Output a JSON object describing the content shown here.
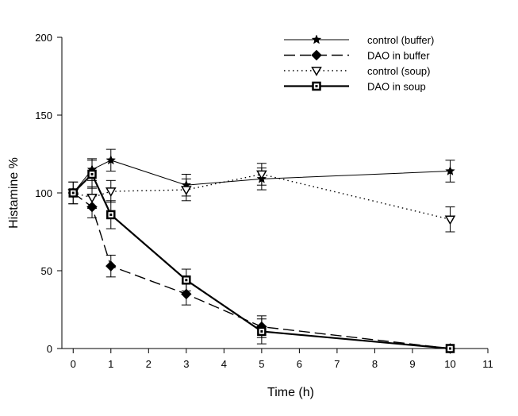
{
  "chart_data": {
    "type": "line",
    "xlabel": "Time (h)",
    "ylabel": "Histamine %",
    "xlim": [
      -0.3,
      11
    ],
    "ylim": [
      0,
      200
    ],
    "xticks": [
      0,
      1,
      2,
      3,
      4,
      5,
      6,
      7,
      8,
      9,
      10,
      11
    ],
    "yticks": [
      0,
      50,
      100,
      150,
      200
    ],
    "grid": false,
    "legend_position": "top-right",
    "series": [
      {
        "name": "control (buffer)",
        "marker": "star",
        "line_style": "solid-thin",
        "x": [
          0,
          0.5,
          1,
          3,
          5,
          10
        ],
        "y": [
          100,
          115,
          121,
          105,
          109,
          114
        ],
        "err": [
          7,
          7,
          7,
          7,
          7,
          7
        ]
      },
      {
        "name": "DAO in buffer",
        "marker": "diamond-filled",
        "line_style": "long-dash",
        "x": [
          0,
          0.5,
          1,
          3,
          5,
          10
        ],
        "y": [
          100,
          91,
          53,
          35,
          14,
          0
        ],
        "err": [
          7,
          7,
          7,
          7,
          7,
          0
        ]
      },
      {
        "name": "control (soup)",
        "marker": "triangle-down-open",
        "line_style": "dotted",
        "x": [
          0,
          0.5,
          1,
          3,
          5,
          10
        ],
        "y": [
          100,
          97,
          101,
          102,
          112,
          83
        ],
        "err": [
          0,
          7,
          7,
          7,
          7,
          8
        ]
      },
      {
        "name": "DAO in soup",
        "marker": "square-open",
        "line_style": "solid-thick",
        "x": [
          0,
          0.5,
          1,
          3,
          5,
          10
        ],
        "y": [
          100,
          112,
          86,
          44,
          11,
          0
        ],
        "err": [
          0,
          9,
          9,
          7,
          8,
          0
        ]
      }
    ]
  }
}
